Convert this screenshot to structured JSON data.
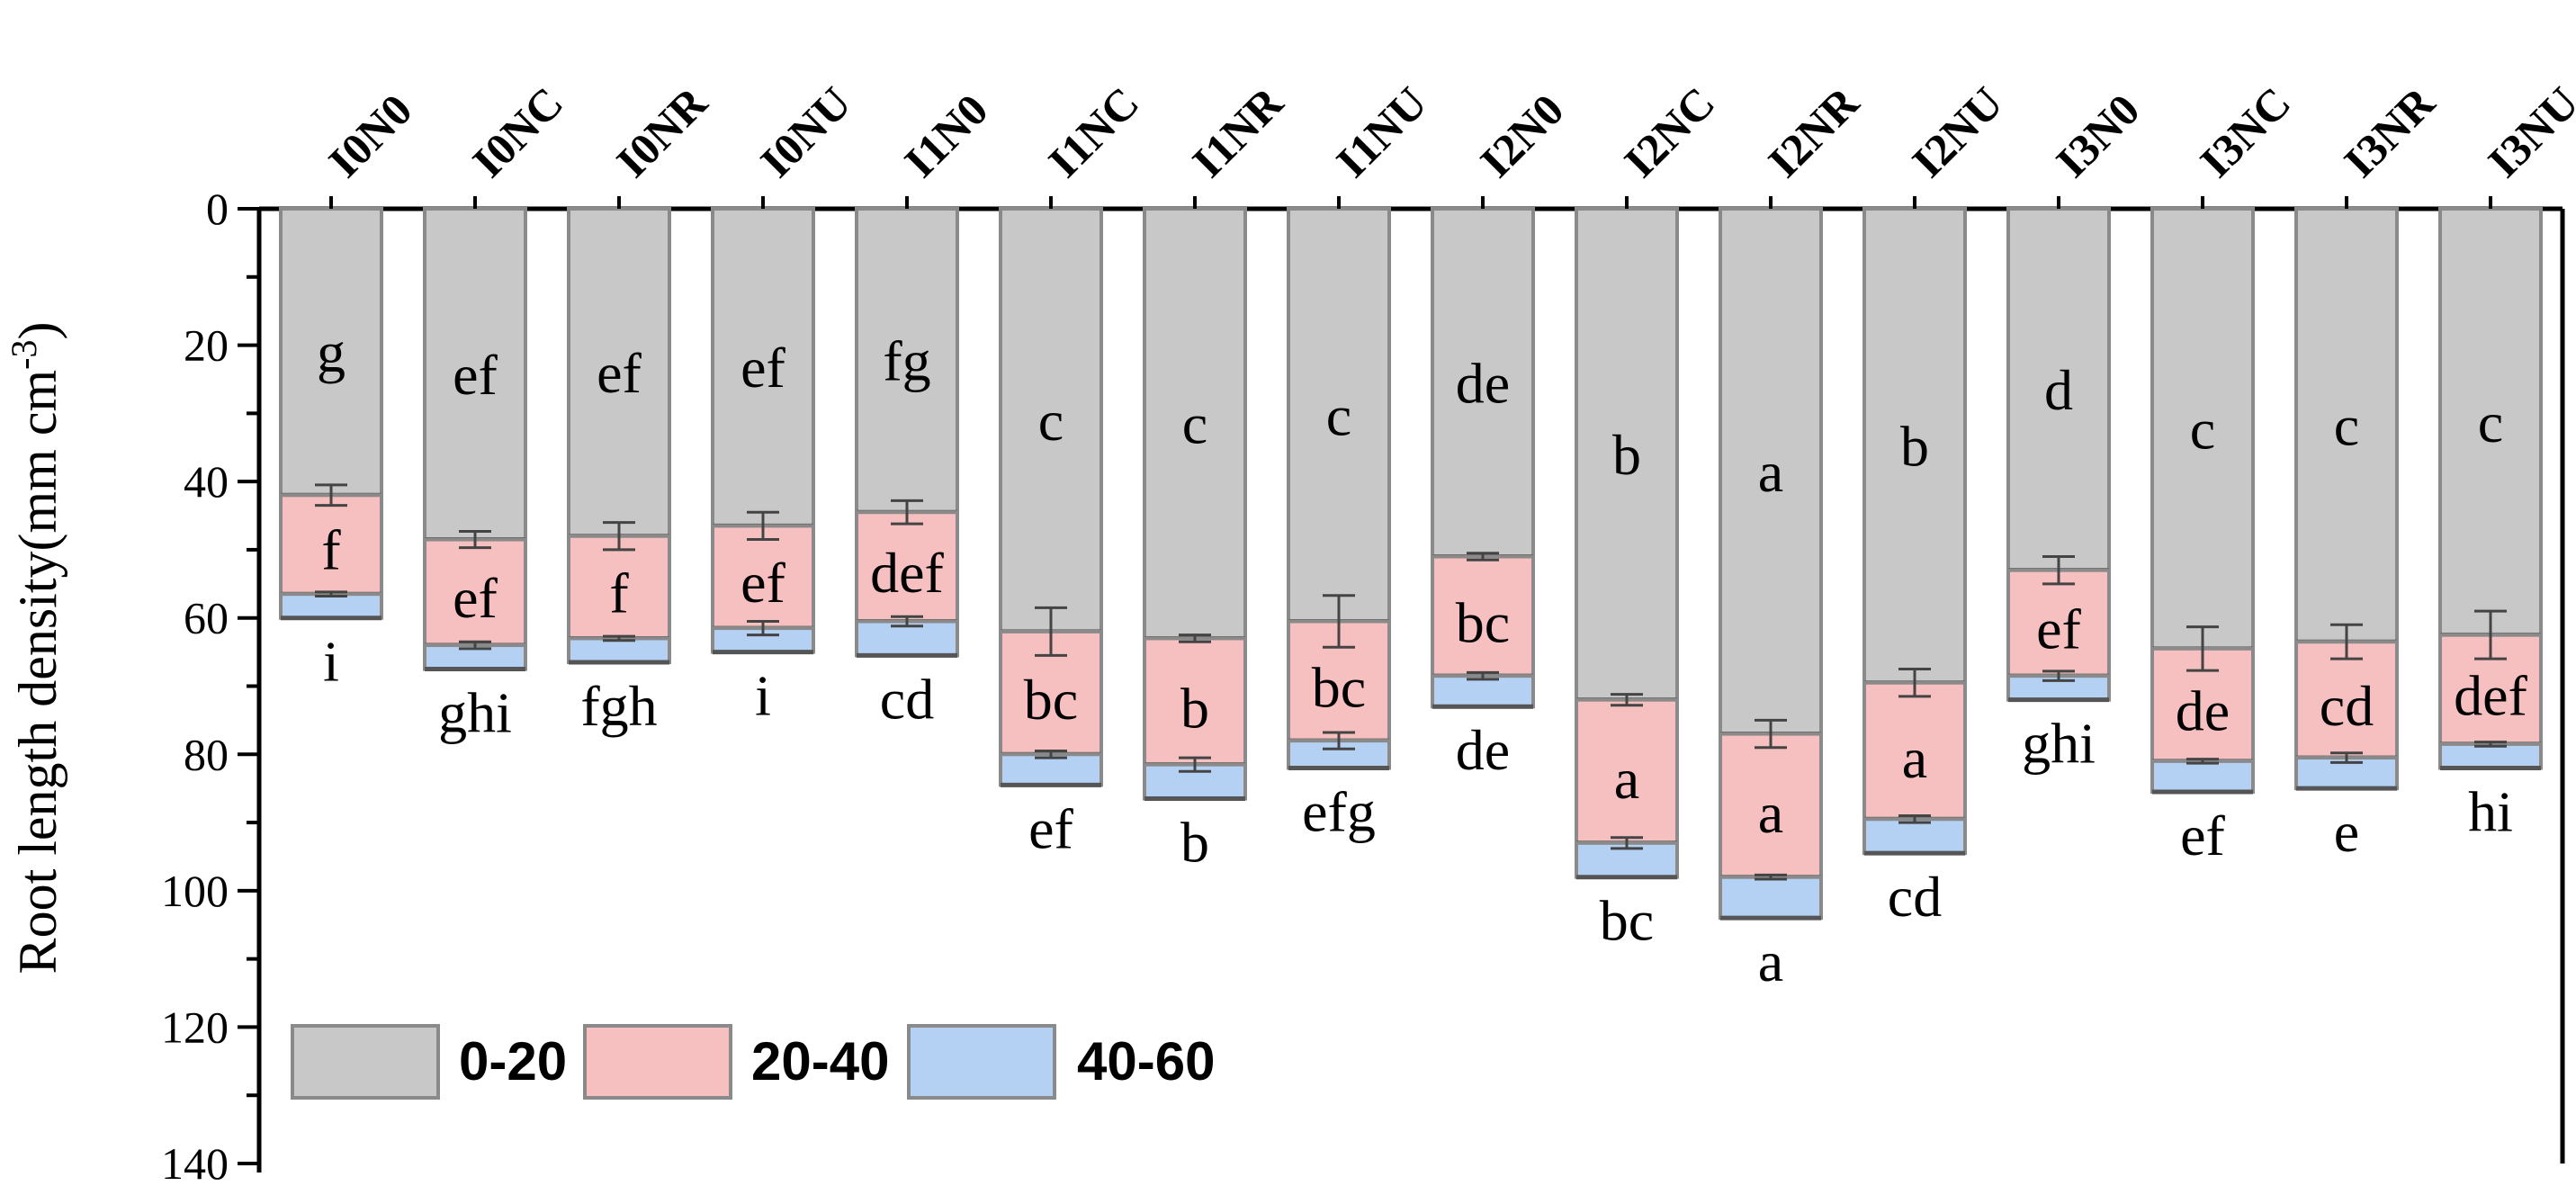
{
  "chart_data": {
    "type": "bar",
    "stacked": true,
    "orientation": "vertical-downward",
    "x_axis_position": "top",
    "categories": [
      "I0N0",
      "I0NC",
      "I0NR",
      "I0NU",
      "I1N0",
      "I1NC",
      "I1NR",
      "I1NU",
      "I2N0",
      "I2NC",
      "I2NR",
      "I2NU",
      "I3N0",
      "I3NC",
      "I3NR",
      "I3NU"
    ],
    "ylabel": "Root length density(mm cm",
    "ylabel_superscript": "-3",
    "ylabel_suffix": ")",
    "ylim": [
      0,
      140
    ],
    "yticks": [
      "0",
      "20",
      "40",
      "60",
      "80",
      "100",
      "120",
      "140"
    ],
    "legend_position": "bottom-left",
    "series": [
      {
        "name": "0-20",
        "color": "#c8c8c8",
        "values": [
          42,
          48.5,
          48,
          46.5,
          44.5,
          62,
          63,
          60.5,
          51,
          72,
          77,
          69.5,
          53,
          64.5,
          63.5,
          62.5
        ],
        "errors": [
          1.5,
          1.2,
          2,
          2,
          1.7,
          3.5,
          0.5,
          3.8,
          0.5,
          0.8,
          2,
          2,
          2,
          3.2,
          2.5,
          3.5
        ],
        "letters": [
          "g",
          "ef",
          "ef",
          "ef",
          "fg",
          "c",
          "c",
          "c",
          "de",
          "b",
          "a",
          "b",
          "d",
          "c",
          "c",
          "c"
        ]
      },
      {
        "name": "20-40",
        "color": "#f7c0c0",
        "values": [
          14.5,
          15.5,
          15,
          15,
          16,
          18,
          18.5,
          17.5,
          17.5,
          21,
          21,
          20,
          15.5,
          16.5,
          17,
          16
        ],
        "errors": [
          0.3,
          0.5,
          0.3,
          1,
          0.7,
          0.5,
          1,
          1.2,
          0.5,
          0.8,
          0.3,
          0.5,
          0.7,
          0.3,
          0.7,
          0.3
        ],
        "letters": [
          "f",
          "ef",
          "f",
          "ef",
          "def",
          "bc",
          "b",
          "bc",
          "bc",
          "a",
          "a",
          "a",
          "ef",
          "de",
          "cd",
          "def"
        ]
      },
      {
        "name": "40-60",
        "color": "#b4d0f2",
        "values": [
          3.5,
          3.5,
          3.5,
          3.5,
          5,
          4.5,
          5,
          4,
          4.5,
          5,
          6,
          5,
          3.5,
          4.5,
          4.5,
          3.5
        ],
        "errors": [
          0,
          0,
          0,
          0,
          0,
          0,
          0,
          0,
          0,
          0,
          0,
          0,
          0,
          0,
          0,
          0
        ],
        "letters": [
          "i",
          "ghi",
          "fgh",
          "i",
          "cd",
          "ef",
          "b",
          "efg",
          "de",
          "bc",
          "a",
          "cd",
          "ghi",
          "ef",
          "e",
          "hi"
        ]
      }
    ]
  }
}
